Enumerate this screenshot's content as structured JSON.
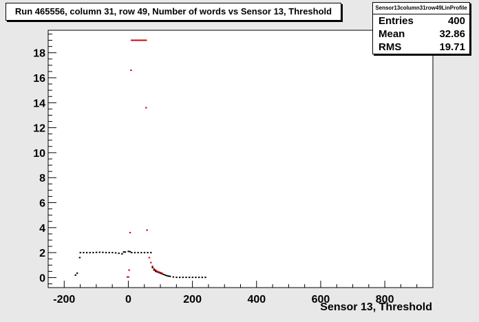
{
  "chart_data": {
    "type": "scatter",
    "title": "Run 465556, column 31, row 49, Number of words vs Sensor 13, Threshold",
    "xlabel": "Sensor 13, Threshold",
    "ylabel": "",
    "xlim": [
      -250,
      950
    ],
    "ylim": [
      -0.8,
      19.8
    ],
    "x_ticks": [
      -200,
      0,
      200,
      400,
      600,
      800
    ],
    "y_ticks": [
      0,
      2,
      4,
      6,
      8,
      10,
      12,
      14,
      16,
      18
    ],
    "grid": false,
    "stats": {
      "name": "Sensor13column31row49LinProfile",
      "entries_label": "Entries",
      "entries": "400",
      "mean_label": "Mean",
      "mean": "32.86",
      "rms_label": "RMS",
      "rms": "19.71"
    },
    "series": [
      {
        "color": "#000000",
        "points": [
          [
            -165,
            0.2
          ],
          [
            -160,
            0.35
          ],
          [
            -152,
            1.6
          ],
          [
            -150,
            2.0
          ],
          [
            -140,
            2.0
          ],
          [
            -130,
            2.0
          ],
          [
            -120,
            2.0
          ],
          [
            -110,
            2.0
          ],
          [
            -100,
            2.02
          ],
          [
            -90,
            2.03
          ],
          [
            -80,
            2.02
          ],
          [
            -70,
            2.0
          ],
          [
            -60,
            2.0
          ],
          [
            -50,
            2.0
          ],
          [
            -40,
            1.98
          ],
          [
            -30,
            1.95
          ],
          [
            -20,
            1.9
          ],
          [
            -15,
            2.05
          ],
          [
            -10,
            2.05
          ],
          [
            0,
            2.1
          ],
          [
            5,
            2.08
          ],
          [
            10,
            2.0
          ],
          [
            20,
            2.0
          ],
          [
            30,
            2.0
          ],
          [
            40,
            2.0
          ],
          [
            50,
            2.0
          ],
          [
            60,
            2.0
          ],
          [
            70,
            2.0
          ],
          [
            75,
            0.8
          ],
          [
            80,
            0.6
          ],
          [
            85,
            0.5
          ],
          [
            90,
            0.45
          ],
          [
            95,
            0.4
          ],
          [
            100,
            0.35
          ],
          [
            105,
            0.3
          ],
          [
            110,
            0.25
          ],
          [
            115,
            0.2
          ],
          [
            120,
            0.15
          ],
          [
            125,
            0.12
          ],
          [
            130,
            0.1
          ],
          [
            140,
            0.05
          ],
          [
            150,
            0.02
          ],
          [
            160,
            0.02
          ],
          [
            170,
            0.02
          ],
          [
            180,
            0.02
          ],
          [
            190,
            0.02
          ],
          [
            200,
            0.02
          ],
          [
            210,
            0.02
          ],
          [
            220,
            0.02
          ],
          [
            230,
            0.02
          ],
          [
            240,
            0.02
          ]
        ]
      },
      {
        "color": "#cc0000",
        "points": [
          [
            10,
            19.0
          ],
          [
            15,
            19.0
          ],
          [
            20,
            19.0
          ],
          [
            25,
            19.0
          ],
          [
            30,
            19.0
          ],
          [
            35,
            19.0
          ],
          [
            40,
            19.0
          ],
          [
            45,
            19.0
          ],
          [
            50,
            19.0
          ],
          [
            55,
            19.0
          ],
          [
            8,
            16.6
          ],
          [
            55,
            13.6
          ],
          [
            58,
            3.8
          ],
          [
            5,
            3.6
          ],
          [
            2,
            0.6
          ],
          [
            -3,
            0.05
          ],
          [
            0,
            0.05
          ],
          [
            65,
            1.6
          ],
          [
            70,
            1.2
          ],
          [
            75,
            0.9
          ],
          [
            80,
            0.7
          ],
          [
            85,
            0.6
          ],
          [
            90,
            0.5
          ],
          [
            95,
            0.45
          ],
          [
            100,
            0.4
          ],
          [
            105,
            0.35
          ]
        ]
      }
    ]
  }
}
